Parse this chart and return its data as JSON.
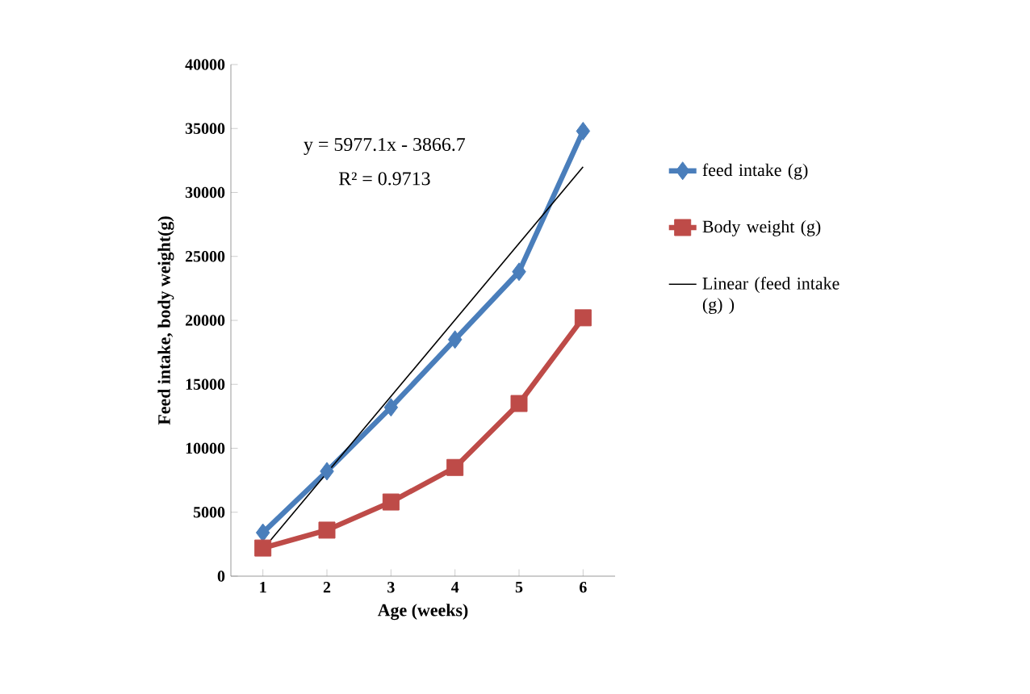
{
  "chart_data": {
    "type": "line",
    "xlabel": "Age (weeks)",
    "ylabel": "Feed intake, body  weight(g)",
    "xlim": [
      0.5,
      6.5
    ],
    "xticks": [
      1,
      2,
      3,
      4,
      5,
      6
    ],
    "ylim": [
      0,
      40000
    ],
    "yticks": [
      0,
      5000,
      10000,
      15000,
      20000,
      25000,
      30000,
      35000,
      40000
    ],
    "x": [
      1,
      2,
      3,
      4,
      5,
      6
    ],
    "series": [
      {
        "name": "feed intake (g)",
        "color": "#4a7ebb",
        "marker": "diamond",
        "values": [
          3400,
          8200,
          13200,
          18500,
          23800,
          34800
        ]
      },
      {
        "name": "Body weight (g)",
        "color": "#be4b48",
        "marker": "square",
        "values": [
          2200,
          3600,
          5800,
          8500,
          13500,
          20200
        ]
      },
      {
        "name": "Linear (feed intake (g) )",
        "color": "#000000",
        "marker": "none",
        "x": [
          1,
          6
        ],
        "values": [
          2100,
          32000
        ]
      }
    ],
    "annotations": [
      "y = 5977.1x  - 3866.7",
      "R² = 0.9713"
    ],
    "legend": "right",
    "grid": false
  }
}
